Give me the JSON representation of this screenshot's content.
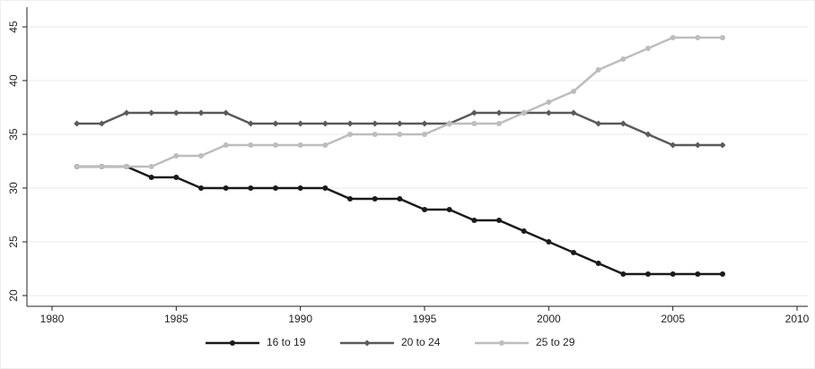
{
  "chart_data": {
    "type": "line",
    "x": [
      1981,
      1982,
      1983,
      1984,
      1985,
      1986,
      1987,
      1988,
      1989,
      1990,
      1991,
      1992,
      1993,
      1994,
      1995,
      1996,
      1997,
      1998,
      1999,
      2000,
      2001,
      2002,
      2003,
      2004,
      2005,
      2006,
      2007
    ],
    "series": [
      {
        "name": "16 to 19",
        "color": "#1a1a1a",
        "marker": "circle",
        "values": [
          32,
          32,
          32,
          31,
          31,
          30,
          30,
          30,
          30,
          30,
          30,
          29,
          29,
          29,
          28,
          28,
          27,
          27,
          26,
          25,
          24,
          23,
          22,
          22,
          22,
          22,
          22
        ]
      },
      {
        "name": "20 to 24",
        "color": "#5a5a5a",
        "marker": "diamond",
        "values": [
          36,
          36,
          37,
          37,
          37,
          37,
          37,
          36,
          36,
          36,
          36,
          36,
          36,
          36,
          36,
          36,
          37,
          37,
          37,
          37,
          37,
          36,
          36,
          35,
          34,
          34,
          34
        ]
      },
      {
        "name": "25 to 29",
        "color": "#bdbdbd",
        "marker": "circle",
        "values": [
          32,
          32,
          32,
          32,
          33,
          33,
          34,
          34,
          34,
          34,
          34,
          35,
          35,
          35,
          35,
          36,
          36,
          36,
          37,
          38,
          39,
          41,
          42,
          43,
          44,
          44,
          44
        ]
      }
    ],
    "xlim": [
      1980,
      2010
    ],
    "xticks": [
      1980,
      1985,
      1990,
      1995,
      2000,
      2005,
      2010
    ],
    "ylim": [
      20,
      45
    ],
    "yticks": [
      20,
      25,
      30,
      35,
      40,
      45
    ],
    "grid": true,
    "legend": "bottom"
  }
}
